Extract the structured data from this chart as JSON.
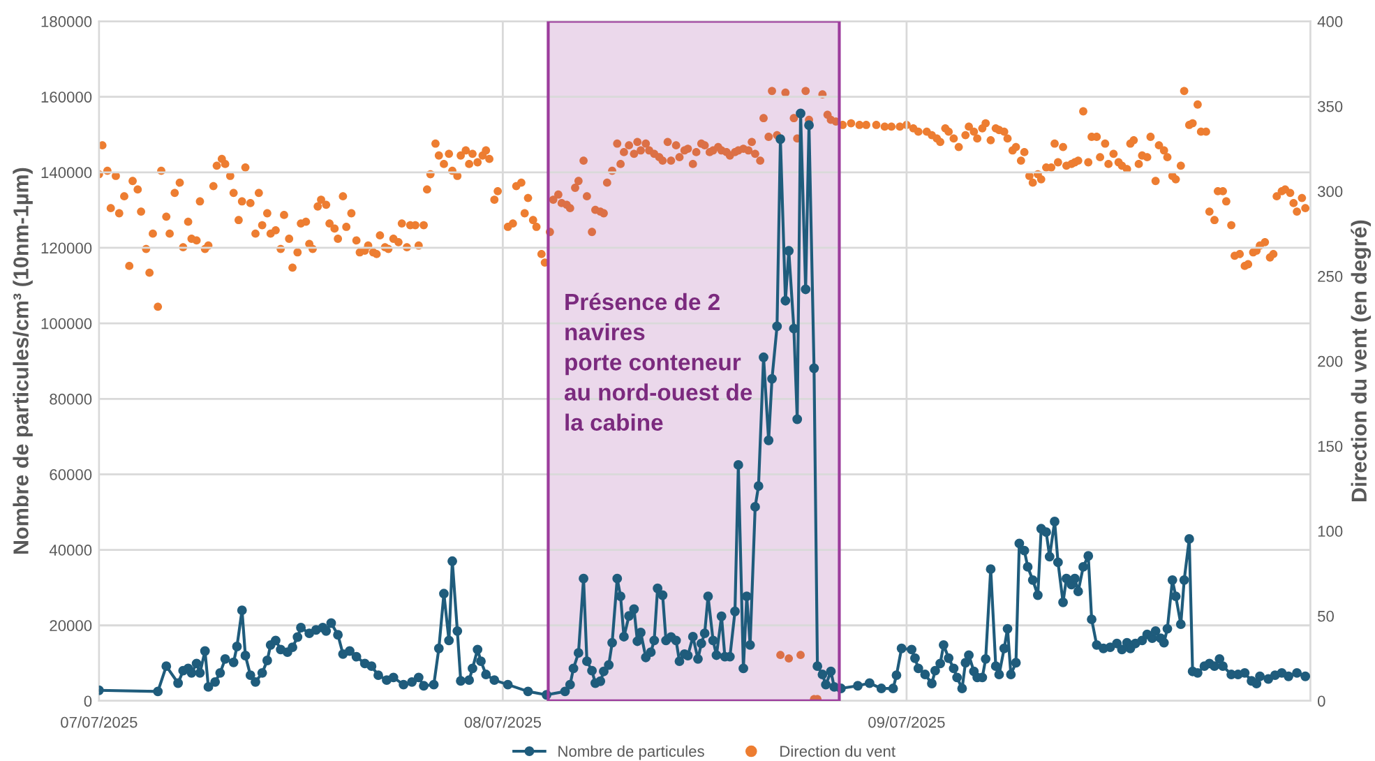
{
  "chart_data": {
    "type": "line",
    "ylabel": "Nombre de particules/cm³ (10nm-1µm)",
    "y2label": "Direction du vent (en degré)",
    "xlim": [
      "2025-07-07T00:00",
      "2025-07-10T00:00"
    ],
    "xticks": [
      {
        "value": "2025-07-07",
        "label": "07/07/2025"
      },
      {
        "value": "2025-07-08",
        "label": "08/07/2025"
      },
      {
        "value": "2025-07-09",
        "label": "09/07/2025"
      }
    ],
    "ylim": [
      0,
      180000
    ],
    "yticks": [
      0,
      20000,
      40000,
      60000,
      80000,
      100000,
      120000,
      140000,
      160000,
      180000
    ],
    "y2lim": [
      0,
      400
    ],
    "y2ticks": [
      0,
      50,
      100,
      150,
      200,
      250,
      300,
      350,
      400
    ],
    "grid": true,
    "legend": "bottom",
    "bands": [
      {
        "axis": "x",
        "from": "2025-07-08T02:42",
        "to": "2025-07-08T20:00",
        "label": "Présence de 2\nnavires\nporte conteneur\nau nord-ouest de\nla cabine",
        "color": "#9c3c9c"
      }
    ],
    "series": [
      {
        "name": "Nombre de particules",
        "color": "#1f5c7c",
        "marker": "circle",
        "line_style": "solid",
        "x": [
          "2025-07-07T00:00",
          "2025-07-07T03:30",
          "2025-07-07T04:00",
          "2025-07-07T04:42",
          "2025-07-07T05:00",
          "2025-07-07T05:18",
          "2025-07-07T05:30",
          "2025-07-07T05:48",
          "2025-07-07T06:00",
          "2025-07-07T06:18",
          "2025-07-07T06:30",
          "2025-07-07T06:54",
          "2025-07-07T07:12",
          "2025-07-07T07:30",
          "2025-07-07T08:00",
          "2025-07-07T08:12",
          "2025-07-07T08:30",
          "2025-07-07T08:42",
          "2025-07-07T09:00",
          "2025-07-07T09:18",
          "2025-07-07T09:42",
          "2025-07-07T10:00",
          "2025-07-07T10:12",
          "2025-07-07T10:30",
          "2025-07-07T10:48",
          "2025-07-07T11:12",
          "2025-07-07T11:30",
          "2025-07-07T11:48",
          "2025-07-07T12:00",
          "2025-07-07T12:30",
          "2025-07-07T12:54",
          "2025-07-07T13:18",
          "2025-07-07T13:30",
          "2025-07-07T13:48",
          "2025-07-07T14:12",
          "2025-07-07T14:30",
          "2025-07-07T14:54",
          "2025-07-07T15:18",
          "2025-07-07T15:48",
          "2025-07-07T16:12",
          "2025-07-07T16:36",
          "2025-07-07T17:06",
          "2025-07-07T17:30",
          "2025-07-07T18:06",
          "2025-07-07T18:36",
          "2025-07-07T19:00",
          "2025-07-07T19:18",
          "2025-07-07T19:54",
          "2025-07-07T20:12",
          "2025-07-07T20:30",
          "2025-07-07T20:48",
          "2025-07-07T21:00",
          "2025-07-07T21:18",
          "2025-07-07T21:30",
          "2025-07-07T22:00",
          "2025-07-07T22:12",
          "2025-07-07T22:30",
          "2025-07-07T22:42",
          "2025-07-07T23:00",
          "2025-07-07T23:30",
          "2025-07-08T00:18",
          "2025-07-08T01:30",
          "2025-07-08T02:36",
          "2025-07-08T03:42",
          "2025-07-08T04:00",
          "2025-07-08T04:12",
          "2025-07-08T04:30",
          "2025-07-08T04:48",
          "2025-07-08T05:00",
          "2025-07-08T05:18",
          "2025-07-08T05:30",
          "2025-07-08T05:48",
          "2025-07-08T06:00",
          "2025-07-08T06:18",
          "2025-07-08T06:30",
          "2025-07-08T06:48",
          "2025-07-08T07:00",
          "2025-07-08T07:12",
          "2025-07-08T07:30",
          "2025-07-08T07:48",
          "2025-07-08T08:00",
          "2025-07-08T08:12",
          "2025-07-08T08:30",
          "2025-07-08T08:48",
          "2025-07-08T09:00",
          "2025-07-08T09:12",
          "2025-07-08T09:30",
          "2025-07-08T09:42",
          "2025-07-08T10:00",
          "2025-07-08T10:18",
          "2025-07-08T10:30",
          "2025-07-08T10:48",
          "2025-07-08T11:00",
          "2025-07-08T11:18",
          "2025-07-08T11:36",
          "2025-07-08T11:48",
          "2025-07-08T12:00",
          "2025-07-08T12:12",
          "2025-07-08T12:30",
          "2025-07-08T12:42",
          "2025-07-08T13:00",
          "2025-07-08T13:12",
          "2025-07-08T13:30",
          "2025-07-08T13:48",
          "2025-07-08T14:00",
          "2025-07-08T14:18",
          "2025-07-08T14:30",
          "2025-07-08T14:42",
          "2025-07-08T15:00",
          "2025-07-08T15:12",
          "2025-07-08T15:30",
          "2025-07-08T15:48",
          "2025-07-08T16:00",
          "2025-07-08T16:18",
          "2025-07-08T16:30",
          "2025-07-08T16:48",
          "2025-07-08T17:00",
          "2025-07-08T17:18",
          "2025-07-08T17:30",
          "2025-07-08T17:42",
          "2025-07-08T18:00",
          "2025-07-08T18:12",
          "2025-07-08T18:30",
          "2025-07-08T18:42",
          "2025-07-08T19:00",
          "2025-07-08T19:12",
          "2025-07-08T19:30",
          "2025-07-08T19:42",
          "2025-07-08T20:06",
          "2025-07-08T21:06",
          "2025-07-08T21:48",
          "2025-07-08T22:30",
          "2025-07-08T23:12",
          "2025-07-08T23:24",
          "2025-07-08T23:42",
          "2025-07-09T00:18",
          "2025-07-09T00:30",
          "2025-07-09T00:42",
          "2025-07-09T01:06",
          "2025-07-09T01:30",
          "2025-07-09T01:42",
          "2025-07-09T02:00",
          "2025-07-09T02:12",
          "2025-07-09T02:30",
          "2025-07-09T02:48",
          "2025-07-09T03:00",
          "2025-07-09T03:18",
          "2025-07-09T03:30",
          "2025-07-09T03:42",
          "2025-07-09T04:00",
          "2025-07-09T04:12",
          "2025-07-09T04:30",
          "2025-07-09T04:42",
          "2025-07-09T05:00",
          "2025-07-09T05:18",
          "2025-07-09T05:30",
          "2025-07-09T05:48",
          "2025-07-09T06:00",
          "2025-07-09T06:12",
          "2025-07-09T06:30",
          "2025-07-09T06:42",
          "2025-07-09T07:00",
          "2025-07-09T07:12",
          "2025-07-09T07:30",
          "2025-07-09T07:48",
          "2025-07-09T08:00",
          "2025-07-09T08:18",
          "2025-07-09T08:30",
          "2025-07-09T08:48",
          "2025-07-09T09:00",
          "2025-07-09T09:18",
          "2025-07-09T09:30",
          "2025-07-09T09:48",
          "2025-07-09T10:00",
          "2025-07-09T10:12",
          "2025-07-09T10:30",
          "2025-07-09T10:48",
          "2025-07-09T11:00",
          "2025-07-09T11:18",
          "2025-07-09T11:42",
          "2025-07-09T12:06",
          "2025-07-09T12:30",
          "2025-07-09T12:48",
          "2025-07-09T13:06",
          "2025-07-09T13:18",
          "2025-07-09T13:36",
          "2025-07-09T14:00",
          "2025-07-09T14:18",
          "2025-07-09T14:36",
          "2025-07-09T14:48",
          "2025-07-09T15:06",
          "2025-07-09T15:18",
          "2025-07-09T15:30",
          "2025-07-09T15:48",
          "2025-07-09T16:00",
          "2025-07-09T16:18",
          "2025-07-09T16:30",
          "2025-07-09T16:48",
          "2025-07-09T17:00",
          "2025-07-09T17:18",
          "2025-07-09T17:42",
          "2025-07-09T18:00",
          "2025-07-09T18:18",
          "2025-07-09T18:36",
          "2025-07-09T18:48",
          "2025-07-09T19:18",
          "2025-07-09T19:42",
          "2025-07-09T20:06",
          "2025-07-09T20:30",
          "2025-07-09T20:48",
          "2025-07-09T21:00",
          "2025-07-09T21:30",
          "2025-07-09T21:54",
          "2025-07-09T22:18",
          "2025-07-09T22:42",
          "2025-07-09T23:12",
          "2025-07-09T23:42"
        ],
        "values": [
          2800,
          2500,
          9200,
          4700,
          8000,
          8600,
          7400,
          9900,
          7400,
          13200,
          3700,
          5000,
          7400,
          11100,
          10200,
          14400,
          24000,
          12000,
          6800,
          5000,
          7400,
          10700,
          14800,
          16000,
          13600,
          12900,
          14200,
          16900,
          19400,
          17900,
          18800,
          19400,
          18500,
          20600,
          17500,
          12400,
          13200,
          11700,
          9900,
          9200,
          6800,
          5500,
          6200,
          4300,
          5000,
          6200,
          4000,
          4300,
          13900,
          28400,
          16000,
          37000,
          18500,
          5300,
          5500,
          8600,
          13600,
          10500,
          7000,
          5500,
          4300,
          2500,
          1600,
          2500,
          4300,
          8600,
          12700,
          32400,
          10500,
          8000,
          4700,
          5200,
          7800,
          9500,
          15400,
          32400,
          27700,
          17000,
          22500,
          24300,
          15800,
          18100,
          11500,
          12900,
          16000,
          29800,
          28000,
          16000,
          16900,
          16000,
          10500,
          12400,
          12000,
          17000,
          11100,
          15200,
          17900,
          27700,
          16000,
          12100,
          22400,
          11700,
          11700,
          23700,
          62500,
          8600,
          27700,
          14800,
          51400,
          56900,
          91000,
          69000,
          85300,
          99200,
          148800,
          106000,
          119200,
          98600,
          74600,
          155600,
          109000,
          152500,
          88100,
          9200,
          7000,
          4300,
          7800,
          3700,
          3300,
          4000,
          4700,
          3300,
          3300,
          6800,
          13900,
          13600,
          11300,
          8600,
          7000,
          4600,
          8000,
          9900,
          14800,
          11300,
          8600,
          6200,
          3300,
          10100,
          12100,
          7800,
          6200,
          6200,
          11100,
          34900,
          9200,
          7000,
          13900,
          19100,
          7000,
          10100,
          41700,
          39800,
          35500,
          32000,
          28000,
          45600,
          44700,
          38200,
          47500,
          36700,
          26100,
          32400,
          30800,
          32400,
          29000,
          35500,
          38400,
          21600,
          14800,
          13900,
          14200,
          15200,
          13600,
          15400,
          13900,
          15200,
          16000,
          17600,
          16600,
          18500,
          16600,
          15400,
          19100,
          32000,
          27700,
          20300,
          32000,
          42900,
          7800,
          7400,
          9200,
          9900,
          9200,
          11100,
          9200,
          7000,
          7000,
          7400,
          5300,
          4600,
          6500,
          5800,
          6800,
          7400,
          6500,
          7400,
          6500
        ]
      },
      {
        "name": "Direction du vent",
        "type": "scatter",
        "axis": "y2",
        "color": "#ed7d31",
        "marker": "circle",
        "x": [
          "2025-07-07T00:00",
          "2025-07-07T00:12",
          "2025-07-07T00:30",
          "2025-07-07T00:42",
          "2025-07-07T01:00",
          "2025-07-07T01:12",
          "2025-07-07T01:30",
          "2025-07-07T01:48",
          "2025-07-07T02:00",
          "2025-07-07T02:18",
          "2025-07-07T02:30",
          "2025-07-07T02:48",
          "2025-07-07T03:00",
          "2025-07-07T03:12",
          "2025-07-07T03:30",
          "2025-07-07T03:42",
          "2025-07-07T04:00",
          "2025-07-07T04:12",
          "2025-07-07T04:30",
          "2025-07-07T04:48",
          "2025-07-07T05:00",
          "2025-07-07T05:18",
          "2025-07-07T05:30",
          "2025-07-07T05:48",
          "2025-07-07T06:00",
          "2025-07-07T06:18",
          "2025-07-07T06:30",
          "2025-07-07T06:48",
          "2025-07-07T07:00",
          "2025-07-07T07:18",
          "2025-07-07T07:30",
          "2025-07-07T07:48",
          "2025-07-07T08:00",
          "2025-07-07T08:18",
          "2025-07-07T08:30",
          "2025-07-07T08:42",
          "2025-07-07T09:00",
          "2025-07-07T09:18",
          "2025-07-07T09:30",
          "2025-07-07T09:42",
          "2025-07-07T10:00",
          "2025-07-07T10:12",
          "2025-07-07T10:30",
          "2025-07-07T10:48",
          "2025-07-07T11:00",
          "2025-07-07T11:18",
          "2025-07-07T11:30",
          "2025-07-07T11:48",
          "2025-07-07T12:00",
          "2025-07-07T12:18",
          "2025-07-07T12:30",
          "2025-07-07T12:42",
          "2025-07-07T13:00",
          "2025-07-07T13:12",
          "2025-07-07T13:30",
          "2025-07-07T13:42",
          "2025-07-07T14:00",
          "2025-07-07T14:12",
          "2025-07-07T14:30",
          "2025-07-07T14:42",
          "2025-07-07T15:00",
          "2025-07-07T15:18",
          "2025-07-07T15:30",
          "2025-07-07T15:48",
          "2025-07-07T16:00",
          "2025-07-07T16:18",
          "2025-07-07T16:30",
          "2025-07-07T16:42",
          "2025-07-07T17:00",
          "2025-07-07T17:12",
          "2025-07-07T17:30",
          "2025-07-07T17:48",
          "2025-07-07T18:00",
          "2025-07-07T18:18",
          "2025-07-07T18:30",
          "2025-07-07T18:48",
          "2025-07-07T19:00",
          "2025-07-07T19:18",
          "2025-07-07T19:30",
          "2025-07-07T19:42",
          "2025-07-07T20:00",
          "2025-07-07T20:12",
          "2025-07-07T20:30",
          "2025-07-07T20:48",
          "2025-07-07T21:00",
          "2025-07-07T21:18",
          "2025-07-07T21:30",
          "2025-07-07T21:48",
          "2025-07-07T22:00",
          "2025-07-07T22:12",
          "2025-07-07T22:30",
          "2025-07-07T22:48",
          "2025-07-07T23:00",
          "2025-07-07T23:12",
          "2025-07-07T23:30",
          "2025-07-07T23:42",
          "2025-07-08T00:18",
          "2025-07-08T00:36",
          "2025-07-08T00:48",
          "2025-07-08T01:06",
          "2025-07-08T01:18",
          "2025-07-08T01:30",
          "2025-07-08T01:48",
          "2025-07-08T02:00",
          "2025-07-08T02:18",
          "2025-07-08T02:30",
          "2025-07-08T02:48",
          "2025-07-08T03:00",
          "2025-07-08T03:18",
          "2025-07-08T03:30",
          "2025-07-08T03:48",
          "2025-07-08T04:00",
          "2025-07-08T04:18",
          "2025-07-08T04:30",
          "2025-07-08T04:48",
          "2025-07-08T05:00",
          "2025-07-08T05:18",
          "2025-07-08T05:30",
          "2025-07-08T05:48",
          "2025-07-08T06:00",
          "2025-07-08T06:12",
          "2025-07-08T06:30",
          "2025-07-08T06:48",
          "2025-07-08T07:00",
          "2025-07-08T07:12",
          "2025-07-08T07:30",
          "2025-07-08T07:48",
          "2025-07-08T08:00",
          "2025-07-08T08:12",
          "2025-07-08T08:30",
          "2025-07-08T08:42",
          "2025-07-08T09:00",
          "2025-07-08T09:18",
          "2025-07-08T09:30",
          "2025-07-08T09:48",
          "2025-07-08T10:00",
          "2025-07-08T10:18",
          "2025-07-08T10:30",
          "2025-07-08T10:48",
          "2025-07-08T11:00",
          "2025-07-08T11:18",
          "2025-07-08T11:30",
          "2025-07-08T11:48",
          "2025-07-08T12:00",
          "2025-07-08T12:18",
          "2025-07-08T12:30",
          "2025-07-08T12:48",
          "2025-07-08T13:00",
          "2025-07-08T13:18",
          "2025-07-08T13:30",
          "2025-07-08T13:48",
          "2025-07-08T14:00",
          "2025-07-08T14:18",
          "2025-07-08T14:36",
          "2025-07-08T14:48",
          "2025-07-08T15:00",
          "2025-07-08T15:18",
          "2025-07-08T15:30",
          "2025-07-08T15:48",
          "2025-07-08T16:00",
          "2025-07-08T16:18",
          "2025-07-08T16:30",
          "2025-07-08T16:48",
          "2025-07-08T17:00",
          "2025-07-08T17:18",
          "2025-07-08T17:30",
          "2025-07-08T17:42",
          "2025-07-08T18:00",
          "2025-07-08T18:12",
          "2025-07-08T18:30",
          "2025-07-08T18:42",
          "2025-07-08T19:00",
          "2025-07-08T19:18",
          "2025-07-08T19:30",
          "2025-07-08T19:48",
          "2025-07-08T20:12",
          "2025-07-08T20:42",
          "2025-07-08T21:12",
          "2025-07-08T21:36",
          "2025-07-08T22:12",
          "2025-07-08T22:42",
          "2025-07-08T23:06",
          "2025-07-08T23:36",
          "2025-07-09T00:00",
          "2025-07-09T00:24",
          "2025-07-09T00:42",
          "2025-07-09T01:12",
          "2025-07-09T01:30",
          "2025-07-09T01:48",
          "2025-07-09T02:00",
          "2025-07-09T02:18",
          "2025-07-09T02:30",
          "2025-07-09T02:48",
          "2025-07-09T03:06",
          "2025-07-09T03:30",
          "2025-07-09T03:42",
          "2025-07-09T04:00",
          "2025-07-09T04:12",
          "2025-07-09T04:30",
          "2025-07-09T04:42",
          "2025-07-09T05:00",
          "2025-07-09T05:18",
          "2025-07-09T05:30",
          "2025-07-09T05:48",
          "2025-07-09T06:00",
          "2025-07-09T06:18",
          "2025-07-09T06:30",
          "2025-07-09T06:48",
          "2025-07-09T07:00",
          "2025-07-09T07:18",
          "2025-07-09T07:30",
          "2025-07-09T07:48",
          "2025-07-09T08:00",
          "2025-07-09T08:18",
          "2025-07-09T08:36",
          "2025-07-09T08:48",
          "2025-07-09T09:00",
          "2025-07-09T09:18",
          "2025-07-09T09:30",
          "2025-07-09T09:48",
          "2025-07-09T10:00",
          "2025-07-09T10:12",
          "2025-07-09T10:30",
          "2025-07-09T10:48",
          "2025-07-09T11:00",
          "2025-07-09T11:18",
          "2025-07-09T11:30",
          "2025-07-09T11:48",
          "2025-07-09T12:00",
          "2025-07-09T12:18",
          "2025-07-09T12:36",
          "2025-07-09T12:48",
          "2025-07-09T13:06",
          "2025-07-09T13:18",
          "2025-07-09T13:30",
          "2025-07-09T13:48",
          "2025-07-09T14:00",
          "2025-07-09T14:18",
          "2025-07-09T14:30",
          "2025-07-09T14:48",
          "2025-07-09T15:00",
          "2025-07-09T15:18",
          "2025-07-09T15:30",
          "2025-07-09T15:48",
          "2025-07-09T16:00",
          "2025-07-09T16:18",
          "2025-07-09T16:30",
          "2025-07-09T16:48",
          "2025-07-09T17:00",
          "2025-07-09T17:18",
          "2025-07-09T17:30",
          "2025-07-09T17:48",
          "2025-07-09T18:00",
          "2025-07-09T18:18",
          "2025-07-09T18:30",
          "2025-07-09T18:48",
          "2025-07-09T19:00",
          "2025-07-09T19:18",
          "2025-07-09T19:30",
          "2025-07-09T19:48",
          "2025-07-09T20:06",
          "2025-07-09T20:18",
          "2025-07-09T20:36",
          "2025-07-09T20:48",
          "2025-07-09T21:00",
          "2025-07-09T21:18",
          "2025-07-09T21:36",
          "2025-07-09T21:48",
          "2025-07-09T22:00",
          "2025-07-09T22:18",
          "2025-07-09T22:30",
          "2025-07-09T22:48",
          "2025-07-09T23:00",
          "2025-07-09T23:12",
          "2025-07-09T23:30",
          "2025-07-09T23:42"
        ],
        "values": [
          310,
          327,
          312,
          290,
          309,
          287,
          297,
          256,
          306,
          301,
          288,
          266,
          252,
          275,
          232,
          312,
          285,
          275,
          299,
          305,
          267,
          282,
          272,
          271,
          294,
          266,
          268,
          303,
          315,
          319,
          316,
          309,
          299,
          283,
          294,
          314,
          293,
          275,
          299,
          280,
          287,
          275,
          277,
          266,
          286,
          272,
          255,
          264,
          281,
          282,
          269,
          266,
          291,
          295,
          292,
          281,
          278,
          272,
          297,
          279,
          287,
          271,
          264,
          265,
          268,
          264,
          263,
          274,
          267,
          266,
          272,
          270,
          281,
          267,
          280,
          280,
          268,
          280,
          301,
          310,
          328,
          321,
          316,
          322,
          312,
          309,
          321,
          324,
          316,
          322,
          317,
          321,
          324,
          319,
          295,
          300,
          279,
          281,
          303,
          305,
          287,
          296,
          283,
          279,
          263,
          258,
          276,
          295,
          298,
          293,
          292,
          290,
          302,
          306,
          318,
          297,
          276,
          289,
          288,
          287,
          305,
          312,
          328,
          316,
          323,
          327,
          322,
          329,
          324,
          328,
          324,
          322,
          320,
          318,
          329,
          318,
          327,
          320,
          324,
          325,
          316,
          323,
          328,
          327,
          323,
          324,
          326,
          324,
          323,
          321,
          323,
          324,
          325,
          324,
          329,
          322,
          318,
          343,
          332,
          359,
          333,
          27,
          358,
          25,
          343,
          331,
          27,
          359,
          342,
          1,
          1,
          357,
          345,
          342,
          341,
          339,
          340,
          339,
          339,
          339,
          338,
          338,
          338,
          339,
          337,
          335,
          335,
          333,
          331,
          329,
          337,
          335,
          331,
          326,
          333,
          338,
          335,
          331,
          337,
          340,
          330,
          337,
          336,
          335,
          331,
          324,
          326,
          318,
          323,
          309,
          305,
          310,
          307,
          314,
          314,
          328,
          317,
          326,
          315,
          316,
          317,
          318,
          347,
          317,
          332,
          332,
          320,
          328,
          316,
          322,
          317,
          315,
          313,
          328,
          330,
          316,
          321,
          320,
          332,
          306,
          327,
          324,
          320,
          309,
          307,
          315,
          359,
          339,
          340,
          351,
          335,
          335,
          288,
          283,
          300,
          300,
          294,
          280,
          262,
          263,
          256,
          257,
          264,
          265,
          268,
          270,
          261,
          263,
          297,
          300,
          301,
          299,
          293,
          288,
          296,
          290
        ]
      }
    ]
  }
}
